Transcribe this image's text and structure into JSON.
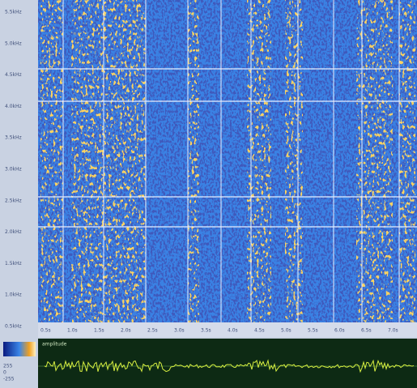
{
  "spectrogram": {
    "y_labels": [
      "5.5kHz",
      "5.0kHz",
      "4.5kHz",
      "4.0kHz",
      "3.5kHz",
      "3.0kHz",
      "2.5kHz",
      "2.0kHz",
      "1.5kHz",
      "1.0kHz",
      "0.5kHz"
    ],
    "x_labels": [
      "0.5s",
      "1.0s",
      "1.5s",
      "2.0s",
      "2.5s",
      "3.0s",
      "3.5s",
      "4.0s",
      "4.5s",
      "5.0s",
      "5.5s",
      "6.0s",
      "6.5s",
      "7.0s"
    ]
  },
  "waveform": {
    "title": "amplitude",
    "side_labels": [
      "255",
      "0",
      "-255"
    ]
  }
}
